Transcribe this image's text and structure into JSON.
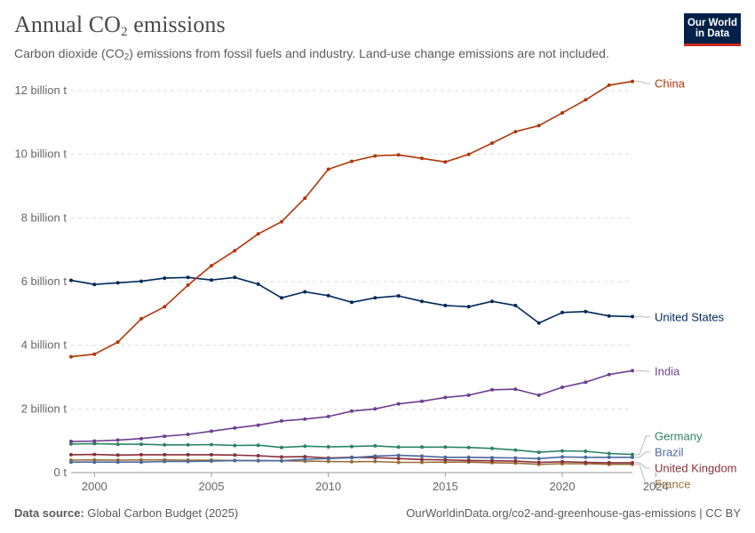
{
  "header": {
    "title_prefix": "Annual CO",
    "title_sub": "2",
    "title_suffix": " emissions",
    "subtitle_prefix": "Carbon dioxide (CO",
    "subtitle_sub": "2",
    "subtitle_suffix": ") emissions from fossil fuels and industry. Land-use change emissions are not included."
  },
  "logo": {
    "line1": "Our World",
    "line2": "in Data",
    "bg": "#002147",
    "accent": "#ce261e"
  },
  "footer": {
    "source_label": "Data source:",
    "source_value": " Global Carbon Budget (2025)",
    "link": "OurWorldinData.org/co2-and-greenhouse-gas-emissions | CC BY"
  },
  "chart_data": {
    "type": "line",
    "x_ticks": [
      2000,
      2005,
      2010,
      2015,
      2020,
      2024
    ],
    "y_ticks": [
      {
        "value": 0,
        "label": "0 t"
      },
      {
        "value": 2,
        "label": "2 billion t"
      },
      {
        "value": 4,
        "label": "4 billion t"
      },
      {
        "value": 6,
        "label": "6 billion t"
      },
      {
        "value": 8,
        "label": "8 billion t"
      },
      {
        "value": 10,
        "label": "10 billion t"
      },
      {
        "value": 12,
        "label": "12 billion t"
      }
    ],
    "xlim": [
      1999.5,
      2024.5
    ],
    "ylim": [
      0,
      12.5
    ],
    "grid": true,
    "legend": "right-end labels",
    "x": [
      1999,
      2000,
      2001,
      2002,
      2003,
      2004,
      2005,
      2006,
      2007,
      2008,
      2009,
      2010,
      2011,
      2012,
      2013,
      2014,
      2015,
      2016,
      2017,
      2018,
      2019,
      2020,
      2021,
      2022,
      2023,
      2024
    ],
    "series": [
      {
        "name": "China",
        "color": "#b13507",
        "values": [
          3.64,
          3.72,
          4.1,
          4.83,
          5.21,
          5.89,
          6.5,
          6.97,
          7.5,
          7.88,
          8.62,
          9.53,
          9.78,
          9.95,
          9.98,
          9.87,
          9.76,
          10.0,
          10.35,
          10.71,
          10.9,
          11.3,
          11.71,
          12.17,
          12.29,
          null
        ]
      },
      {
        "name": "United States",
        "color": "#00295b",
        "values": [
          6.04,
          5.91,
          5.96,
          6.01,
          6.11,
          6.13,
          6.05,
          6.13,
          5.92,
          5.49,
          5.68,
          5.56,
          5.35,
          5.49,
          5.55,
          5.38,
          5.25,
          5.21,
          5.38,
          5.25,
          4.7,
          5.03,
          5.06,
          4.92,
          4.9,
          null
        ]
      },
      {
        "name": "India",
        "color": "#6d3e91",
        "values": [
          0.98,
          0.99,
          1.02,
          1.07,
          1.14,
          1.2,
          1.3,
          1.4,
          1.49,
          1.62,
          1.68,
          1.76,
          1.93,
          2.0,
          2.16,
          2.24,
          2.36,
          2.43,
          2.6,
          2.62,
          2.43,
          2.68,
          2.84,
          3.08,
          3.2,
          null
        ]
      },
      {
        "name": "Germany",
        "color": "#2c8465",
        "values": [
          0.9,
          0.91,
          0.89,
          0.89,
          0.87,
          0.87,
          0.88,
          0.85,
          0.86,
          0.79,
          0.83,
          0.81,
          0.82,
          0.84,
          0.8,
          0.8,
          0.8,
          0.79,
          0.76,
          0.71,
          0.64,
          0.68,
          0.67,
          0.6,
          0.57,
          null
        ]
      },
      {
        "name": "Brazil",
        "color": "#4c6a9c",
        "values": [
          0.33,
          0.33,
          0.33,
          0.33,
          0.35,
          0.35,
          0.36,
          0.38,
          0.38,
          0.37,
          0.42,
          0.44,
          0.47,
          0.52,
          0.54,
          0.52,
          0.48,
          0.48,
          0.47,
          0.46,
          0.44,
          0.49,
          0.48,
          0.48,
          0.48,
          null
        ]
      },
      {
        "name": "United Kingdom",
        "color": "#883039",
        "values": [
          0.56,
          0.57,
          0.55,
          0.56,
          0.56,
          0.56,
          0.56,
          0.55,
          0.53,
          0.49,
          0.5,
          0.46,
          0.48,
          0.47,
          0.44,
          0.41,
          0.4,
          0.38,
          0.37,
          0.36,
          0.32,
          0.34,
          0.32,
          0.31,
          0.31,
          null
        ]
      },
      {
        "name": "France",
        "color": "#996d39",
        "values": [
          0.39,
          0.4,
          0.39,
          0.4,
          0.4,
          0.39,
          0.39,
          0.38,
          0.37,
          0.37,
          0.36,
          0.35,
          0.34,
          0.35,
          0.32,
          0.32,
          0.33,
          0.33,
          0.31,
          0.3,
          0.26,
          0.28,
          0.28,
          0.26,
          0.26,
          null
        ]
      }
    ],
    "labels": [
      {
        "name": "China",
        "text": "China",
        "color": "#b13507"
      },
      {
        "name": "United States",
        "text": "United States",
        "color": "#00295b"
      },
      {
        "name": "India",
        "text": "India",
        "color": "#6d3e91"
      },
      {
        "name": "Germany",
        "text": "Germany",
        "color": "#2c8465"
      },
      {
        "name": "Brazil",
        "text": "Brazil",
        "color": "#4c6a9c"
      },
      {
        "name": "United Kingdom",
        "text": "United Kingdom",
        "color": "#883039"
      },
      {
        "name": "France",
        "text": "France",
        "color": "#996d39"
      }
    ]
  }
}
